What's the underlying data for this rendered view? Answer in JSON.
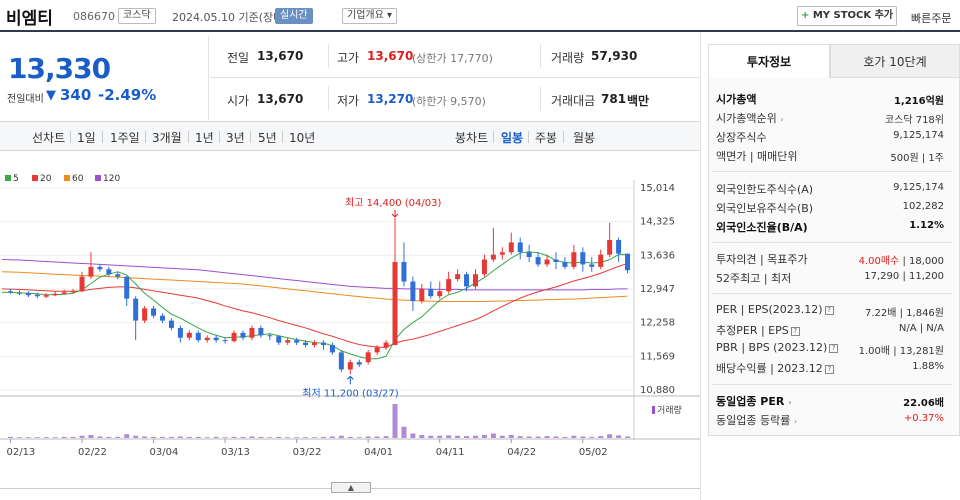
{
  "header": {
    "stock_name": "비엠티",
    "stock_code": "086670",
    "market": "코스닥",
    "date_basis": "2024.05.10 기준(장마감)",
    "live_label": "실시간",
    "company_info_label": "기업개요",
    "mystock_label": "MY STOCK 추가",
    "quick_order_label": "빠른주문"
  },
  "price": {
    "current": "13,330",
    "change_label": "전일대비",
    "change_value": "340",
    "change_pct": "-2.49%",
    "direction_color": "#1a5dc9"
  },
  "quote": {
    "prev_close_label": "전일",
    "prev_close": "13,670",
    "high_label": "고가",
    "high": "13,670",
    "upper_limit": "(상한가 17,770)",
    "volume_label": "거래량",
    "volume": "57,930",
    "open_label": "시가",
    "open": "13,670",
    "low_label": "저가",
    "low": "13,270",
    "lower_limit": "(하한가 9,570)",
    "amount_label": "거래대금",
    "amount": "781",
    "amount_unit": "백만"
  },
  "period_tabs": {
    "line_label": "선차트",
    "items": [
      "1일",
      "1주일",
      "3개월",
      "1년",
      "3년",
      "5년",
      "10년"
    ],
    "candle_label": "봉차트",
    "candle_items": [
      "일봉",
      "주봉",
      "월봉"
    ],
    "active_candle": "일봉"
  },
  "legend": [
    {
      "label": "5",
      "color": "#39a845"
    },
    {
      "label": "20",
      "color": "#e53935"
    },
    {
      "label": "60",
      "color": "#f08a1d"
    },
    {
      "label": "120",
      "color": "#9b4fd1"
    }
  ],
  "chart_data": {
    "type": "candlestick",
    "y_ticks": [
      "15,014",
      "14,325",
      "13,636",
      "12,947",
      "12,258",
      "11,569",
      "10,880"
    ],
    "ylim": [
      10880,
      15014
    ],
    "x_labels": [
      "02/13",
      "02/22",
      "03/04",
      "03/13",
      "03/22",
      "04/01",
      "04/11",
      "04/22",
      "05/02"
    ],
    "high_annotation": "최고 14,400 (04/03)",
    "low_annotation": "최저 11,200 (03/27)",
    "volume_label": "거래량",
    "candles": [
      [
        12900,
        12880,
        12950,
        12850
      ],
      [
        12870,
        12860,
        12920,
        12820
      ],
      [
        12860,
        12820,
        12900,
        12780
      ],
      [
        12830,
        12800,
        12870,
        12760
      ],
      [
        12790,
        12820,
        12860,
        12760
      ],
      [
        12820,
        12850,
        12900,
        12800
      ],
      [
        12850,
        12880,
        12930,
        12830
      ],
      [
        12880,
        12900,
        12950,
        12850
      ],
      [
        12900,
        13200,
        13300,
        12880
      ],
      [
        13200,
        13400,
        13700,
        13150
      ],
      [
        13400,
        13350,
        13450,
        13300
      ],
      [
        13350,
        13250,
        13400,
        13200
      ],
      [
        13250,
        13200,
        13300,
        13150
      ],
      [
        13200,
        12750,
        13210,
        12600
      ],
      [
        12750,
        12300,
        12800,
        11900
      ],
      [
        12300,
        12550,
        12600,
        12250
      ],
      [
        12550,
        12400,
        12600,
        12350
      ],
      [
        12400,
        12300,
        12450,
        12250
      ],
      [
        12300,
        12150,
        12350,
        12100
      ],
      [
        12150,
        11950,
        12200,
        11850
      ],
      [
        11950,
        12050,
        12100,
        11900
      ],
      [
        12050,
        11900,
        12100,
        11850
      ],
      [
        11900,
        11950,
        12000,
        11850
      ],
      [
        11950,
        11900,
        12000,
        11850
      ],
      [
        11900,
        11880,
        11950,
        11830
      ],
      [
        11880,
        12050,
        12100,
        11850
      ],
      [
        12050,
        11950,
        12100,
        11900
      ],
      [
        11950,
        12150,
        12200,
        11900
      ],
      [
        12150,
        12000,
        12200,
        11950
      ],
      [
        12000,
        11980,
        12050,
        11900
      ],
      [
        11980,
        11850,
        12000,
        11800
      ],
      [
        11850,
        11900,
        11950,
        11800
      ],
      [
        11900,
        11850,
        11950,
        11800
      ],
      [
        11850,
        11800,
        11900,
        11750
      ],
      [
        11800,
        11850,
        11900,
        11750
      ],
      [
        11850,
        11800,
        11900,
        11700
      ],
      [
        11800,
        11650,
        11850,
        11600
      ],
      [
        11650,
        11300,
        11700,
        11250
      ],
      [
        11300,
        11450,
        11500,
        11200
      ],
      [
        11450,
        11400,
        11500,
        11350
      ],
      [
        11450,
        11650,
        11700,
        11400
      ],
      [
        11650,
        11750,
        11800,
        11600
      ],
      [
        11750,
        11850,
        11900,
        11700
      ],
      [
        11800,
        13500,
        14400,
        11800
      ],
      [
        13500,
        13100,
        13900,
        13000
      ],
      [
        13100,
        12700,
        13200,
        12500
      ],
      [
        12700,
        12950,
        13050,
        12650
      ],
      [
        12950,
        12800,
        13100,
        12750
      ],
      [
        12800,
        12900,
        13100,
        12750
      ],
      [
        12900,
        13150,
        13300,
        12850
      ],
      [
        13150,
        13250,
        13350,
        13100
      ],
      [
        13250,
        13000,
        13300,
        12900
      ],
      [
        13000,
        13250,
        13350,
        12950
      ],
      [
        13250,
        13550,
        13650,
        13200
      ],
      [
        13550,
        13650,
        14200,
        13500
      ],
      [
        13650,
        13700,
        13800,
        13550
      ],
      [
        13700,
        13900,
        14100,
        13650
      ],
      [
        13900,
        13700,
        14000,
        13550
      ],
      [
        13700,
        13600,
        13850,
        13500
      ],
      [
        13600,
        13450,
        13700,
        13400
      ],
      [
        13450,
        13550,
        13650,
        13400
      ],
      [
        13550,
        13500,
        13700,
        13350
      ],
      [
        13500,
        13400,
        13600,
        13350
      ],
      [
        13400,
        13700,
        13850,
        13350
      ],
      [
        13700,
        13450,
        13800,
        13300
      ],
      [
        13450,
        13400,
        13600,
        13300
      ],
      [
        13400,
        13650,
        13750,
        13350
      ],
      [
        13650,
        13950,
        14300,
        13600
      ],
      [
        13950,
        13670,
        14000,
        13500
      ],
      [
        13670,
        13330,
        13670,
        13270
      ]
    ],
    "ma5": [
      12880,
      12870,
      12860,
      12850,
      12830,
      12830,
      12840,
      12860,
      12930,
      13060,
      13190,
      13250,
      13300,
      13230,
      13050,
      12860,
      12720,
      12570,
      12430,
      12350,
      12250,
      12150,
      12060,
      12000,
      11950,
      11960,
      11970,
      11990,
      12010,
      12030,
      11990,
      11950,
      11910,
      11880,
      11850,
      11840,
      11790,
      11680,
      11620,
      11560,
      11520,
      11520,
      11570,
      11910,
      12120,
      12260,
      12380,
      12550,
      12720,
      12830,
      12880,
      12960,
      13070,
      13180,
      13320,
      13450,
      13580,
      13680,
      13710,
      13690,
      13630,
      13530,
      13490,
      13480,
      13500,
      13480,
      13490,
      13550,
      13650,
      13650
    ],
    "ma20": [
      12950,
      12940,
      12930,
      12920,
      12910,
      12900,
      12900,
      12900,
      12910,
      12940,
      12960,
      12980,
      12990,
      12990,
      12970,
      12940,
      12910,
      12880,
      12850,
      12820,
      12790,
      12760,
      12710,
      12660,
      12600,
      12550,
      12500,
      12460,
      12410,
      12360,
      12300,
      12250,
      12200,
      12150,
      12090,
      12030,
      11980,
      11920,
      11860,
      11810,
      11780,
      11760,
      11750,
      11840,
      11890,
      11920,
      11970,
      12020,
      12080,
      12140,
      12200,
      12260,
      12320,
      12400,
      12500,
      12590,
      12680,
      12760,
      12830,
      12890,
      12940,
      12990,
      13050,
      13110,
      13160,
      13210,
      13270,
      13340,
      13410,
      13470
    ],
    "ma60": [
      13300,
      13290,
      13280,
      13270,
      13260,
      13250,
      13240,
      13230,
      13220,
      13220,
      13210,
      13200,
      13190,
      13180,
      13170,
      13160,
      13150,
      13140,
      13130,
      13120,
      13110,
      13100,
      13090,
      13080,
      13070,
      13060,
      13050,
      13030,
      13010,
      12990,
      12970,
      12950,
      12930,
      12910,
      12890,
      12870,
      12850,
      12830,
      12810,
      12790,
      12770,
      12760,
      12740,
      12730,
      12720,
      12710,
      12700,
      12700,
      12690,
      12690,
      12690,
      12690,
      12690,
      12690,
      12700,
      12700,
      12710,
      12710,
      12720,
      12720,
      12730,
      12730,
      12740,
      12740,
      12750,
      12760,
      12770,
      12780,
      12790,
      12800
    ],
    "ma120": [
      13550,
      13540,
      13530,
      13520,
      13510,
      13500,
      13490,
      13480,
      13470,
      13460,
      13450,
      13440,
      13430,
      13420,
      13410,
      13400,
      13390,
      13380,
      13370,
      13360,
      13350,
      13340,
      13320,
      13300,
      13280,
      13260,
      13240,
      13220,
      13200,
      13180,
      13160,
      13140,
      13120,
      13100,
      13080,
      13060,
      13040,
      13020,
      13000,
      12990,
      12980,
      12970,
      12960,
      12960,
      12950,
      12950,
      12950,
      12940,
      12940,
      12940,
      12940,
      12930,
      12930,
      12930,
      12930,
      12930,
      12930,
      12930,
      12930,
      12930,
      12930,
      12930,
      12930,
      12930,
      12930,
      12940,
      12940,
      12940,
      12950,
      12950
    ],
    "volumes": [
      3,
      2,
      2,
      2,
      2,
      2,
      3,
      3,
      6,
      8,
      4,
      3,
      3,
      10,
      6,
      4,
      3,
      3,
      3,
      4,
      3,
      3,
      2,
      3,
      2,
      3,
      3,
      4,
      3,
      2,
      3,
      2,
      2,
      2,
      2,
      3,
      4,
      6,
      3,
      2,
      4,
      4,
      5,
      90,
      30,
      12,
      8,
      6,
      6,
      7,
      6,
      5,
      6,
      8,
      12,
      6,
      8,
      5,
      4,
      4,
      5,
      4,
      3,
      6,
      4,
      3,
      5,
      10,
      7,
      4
    ]
  },
  "right_panel": {
    "tab_invest": "투자정보",
    "tab_hoga": "호가 10단계",
    "rows": [
      {
        "label": "시가총액",
        "value": "1,216억원",
        "bold": true
      },
      {
        "label": "시가총액순위",
        "value": "코스닥 718위"
      },
      {
        "label": "상장주식수",
        "value": "9,125,174"
      },
      {
        "label": "액면가 | 매매단위",
        "value": "500원 | 1주"
      },
      {
        "label": "외국인한도주식수(A)",
        "value": "9,125,174"
      },
      {
        "label": "외국인보유주식수(B)",
        "value": "102,282"
      },
      {
        "label": "외국인소진율(B/A)",
        "value": "1.12%",
        "bold": true
      },
      {
        "label": "투자의견 | 목표주가",
        "value_red": "4.00매수",
        "value": "| 18,000"
      },
      {
        "label": "52주최고 | 최저",
        "value": "17,290 | 11,200"
      },
      {
        "label": "PER | EPS(2023.12)",
        "value": "7.22배 | 1,846원"
      },
      {
        "label": "추정PER | EPS",
        "value": "N/A | N/A"
      },
      {
        "label": "PBR | BPS (2023.12)",
        "value": "1.00배 | 13,281원"
      },
      {
        "label": "배당수익률 | 2023.12",
        "value": "1.88%"
      },
      {
        "label": "동일업종 PER",
        "value": "22.06배",
        "bold": true
      },
      {
        "label": "동일업종 등락률",
        "value": "+0.37%",
        "red": true
      }
    ]
  }
}
